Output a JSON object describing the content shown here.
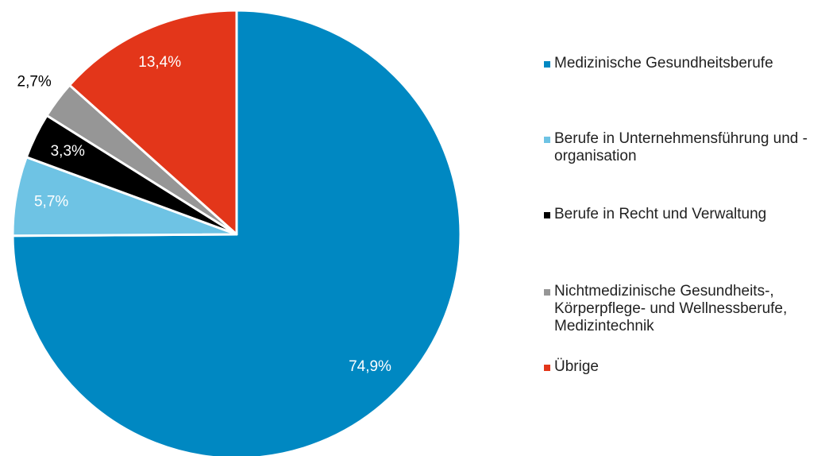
{
  "chart_data": {
    "type": "pie",
    "categories": [
      "Medizinische Gesundheitsberufe",
      "Berufe in Unternehmensführung und -organisation",
      "Berufe in Recht und Verwaltung",
      "Nichtmedizinische Gesundheits-, Körperpflege- und Wellnessberufe, Medizintechnik",
      "Übrige"
    ],
    "values": [
      74.9,
      5.7,
      3.3,
      2.7,
      13.4
    ],
    "value_labels": [
      "74,9%",
      "5,7%",
      "3,3%",
      "2,7%",
      "13,4%"
    ],
    "colors": [
      "#0088c2",
      "#6ec3e4",
      "#000000",
      "#969696",
      "#e3361a"
    ],
    "legend": "right"
  }
}
